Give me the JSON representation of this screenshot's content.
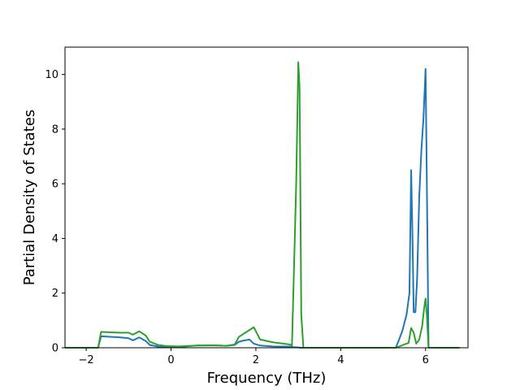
{
  "chart_data": {
    "type": "line",
    "title": "",
    "xlabel": "Frequency (THz)",
    "ylabel": "Partial Density of States",
    "xlim": [
      -2.5,
      7.0
    ],
    "ylim": [
      0,
      11.0
    ],
    "xticks": [
      -2,
      0,
      2,
      4,
      6
    ],
    "yticks": [
      0,
      2,
      4,
      6,
      8,
      10
    ],
    "grid": false,
    "legend": "none",
    "series": [
      {
        "color": "#1f77b4",
        "x": [
          -2.5,
          -1.72,
          -1.65,
          -1.2,
          -1.0,
          -0.9,
          -0.75,
          -0.6,
          -0.5,
          -0.3,
          -0.1,
          0.2,
          0.6,
          1.0,
          1.3,
          1.5,
          1.6,
          1.7,
          1.85,
          1.95,
          2.1,
          2.4,
          2.8,
          2.9,
          2.95,
          3.0,
          3.05,
          3.1,
          3.3,
          4.0,
          5.3,
          5.45,
          5.55,
          5.62,
          5.66,
          5.69,
          5.72,
          5.76,
          5.8,
          5.85,
          5.9,
          5.95,
          6.0,
          6.03,
          6.07,
          6.3,
          6.8
        ],
        "y": [
          0,
          0,
          0.42,
          0.38,
          0.35,
          0.27,
          0.38,
          0.25,
          0.1,
          0.04,
          0.02,
          0.03,
          0.08,
          0.09,
          0.07,
          0.1,
          0.22,
          0.26,
          0.3,
          0.15,
          0.08,
          0.05,
          0.04,
          0.02,
          0.02,
          0.01,
          0.0,
          0.0,
          0.0,
          0.0,
          0.0,
          0.6,
          1.2,
          2.0,
          6.5,
          4.2,
          1.3,
          1.3,
          2.5,
          5.5,
          7.2,
          8.4,
          10.2,
          6.0,
          0.0,
          0.0,
          0.0
        ]
      },
      {
        "color": "#2ca02c",
        "x": [
          -2.5,
          -1.72,
          -1.65,
          -1.2,
          -1.0,
          -0.9,
          -0.75,
          -0.6,
          -0.5,
          -0.3,
          -0.1,
          0.2,
          0.6,
          1.0,
          1.3,
          1.5,
          1.6,
          1.7,
          1.85,
          1.95,
          2.1,
          2.4,
          2.8,
          2.85,
          2.9,
          2.95,
          3.0,
          3.03,
          3.07,
          3.12,
          3.3,
          4.0,
          5.3,
          5.6,
          5.66,
          5.72,
          5.78,
          5.85,
          5.92,
          5.97,
          6.0,
          6.03,
          6.07,
          6.3,
          6.8
        ],
        "y": [
          0,
          0,
          0.58,
          0.55,
          0.55,
          0.48,
          0.6,
          0.45,
          0.22,
          0.1,
          0.06,
          0.05,
          0.08,
          0.09,
          0.07,
          0.12,
          0.4,
          0.5,
          0.65,
          0.75,
          0.3,
          0.2,
          0.12,
          0.08,
          3.0,
          6.0,
          10.45,
          9.5,
          1.2,
          0.0,
          0.0,
          0.0,
          0.0,
          0.18,
          0.72,
          0.55,
          0.15,
          0.3,
          0.8,
          1.5,
          1.8,
          1.2,
          0.0,
          0.0,
          0.0
        ]
      }
    ]
  }
}
